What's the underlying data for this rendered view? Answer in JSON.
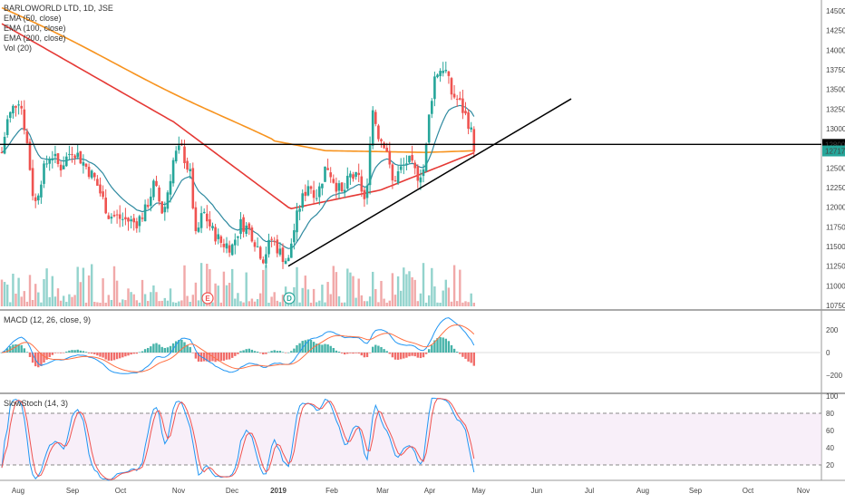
{
  "chart_data": [
    {
      "type": "candlestick",
      "title": "BARLOWORLD LTD, 1D, JSE",
      "indicators": [
        "EMA (50, close)",
        "EMA (100, close)",
        "EMA (200, close)",
        "Vol (20)"
      ],
      "ylim": [
        10700,
        14600
      ],
      "y_ticks": [
        14500,
        14250,
        14000,
        13750,
        13500,
        13250,
        13000,
        12750,
        12500,
        12250,
        12000,
        11750,
        11500,
        11250,
        11000,
        10750
      ],
      "price_labels": [
        {
          "value": 12800,
          "text": "12800",
          "color": "#000000"
        },
        {
          "value": 12717,
          "text": "12717",
          "color": "#26a69a"
        }
      ],
      "x_ticks": [
        "Aug",
        "Sep",
        "Oct",
        "Nov",
        "Dec",
        "2019",
        "Feb",
        "Mar",
        "Apr",
        "May",
        "Jun",
        "Jul",
        "Aug",
        "Sep",
        "Oct",
        "Nov"
      ],
      "horizontal_line": 12800,
      "trendline": [
        {
          "x": "2019-01-02",
          "y": 11250
        },
        {
          "x": "2019-06-25",
          "y": 13380
        }
      ],
      "markers": [
        {
          "label": "E",
          "x": "2018-11-28"
        },
        {
          "label": "D",
          "x": "2019-01-03"
        }
      ],
      "colors": {
        "up": "#26a69a",
        "down": "#ef5350",
        "ema50": "#2f8aa0",
        "ema100": "#e53935",
        "ema200": "#f7931e"
      }
    },
    {
      "type": "line",
      "title": "MACD (12, 26, close, 9)",
      "ylim": [
        -300,
        300
      ],
      "y_ticks": [
        200,
        0,
        -200
      ],
      "colors": {
        "macd": "#2196f3",
        "signal": "#ff7043",
        "hist_up": "#26a69a",
        "hist_down": "#ef5350"
      }
    },
    {
      "type": "line",
      "title": "SlowStoch (14, 3)",
      "ylim": [
        0,
        100
      ],
      "y_ticks": [
        100,
        80,
        60,
        40,
        20
      ],
      "bands": [
        20,
        80
      ],
      "colors": {
        "k": "#2196f3",
        "d": "#ef5350",
        "band_fill": "#f3e5f5"
      }
    }
  ]
}
